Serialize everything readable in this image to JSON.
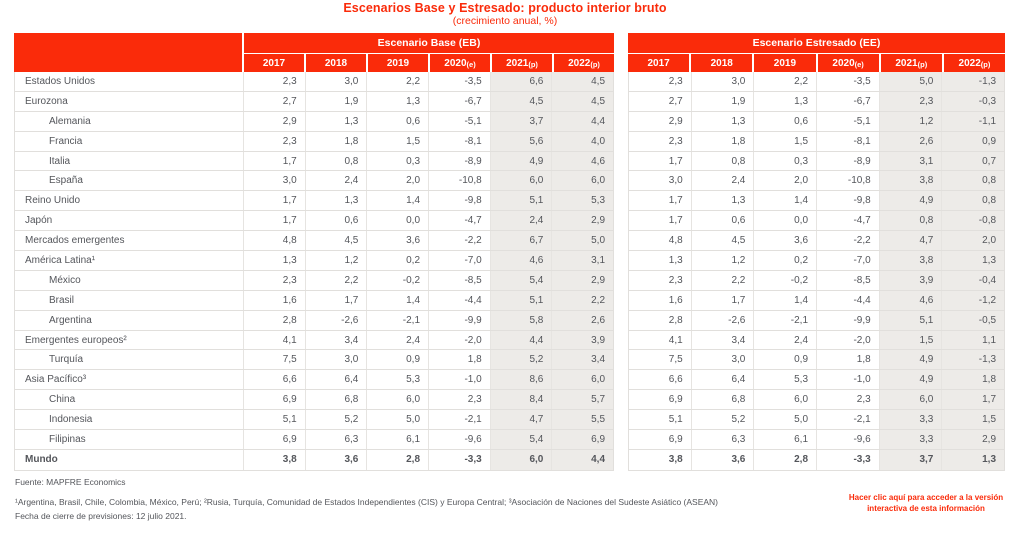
{
  "page": {
    "title": "Escenarios Base y Estresado: producto interior bruto",
    "subtitle": "(crecimiento anual, %)"
  },
  "colors": {
    "brand_red": "#fa2b0a",
    "shaded_forecast_column": "#edebe8",
    "text": "#54565b",
    "border": "#e1dfdc"
  },
  "tables": [
    {
      "id": "eb",
      "title": "Escenario Base (EB)",
      "has_label_column": true,
      "years": [
        {
          "y": "2017",
          "s": ""
        },
        {
          "y": "2018",
          "s": ""
        },
        {
          "y": "2019",
          "s": ""
        },
        {
          "y": "2020",
          "s": "(e)"
        },
        {
          "y": "2021",
          "s": "(p)"
        },
        {
          "y": "2022",
          "s": "(p)"
        }
      ],
      "shaded_columns": [
        4,
        5
      ]
    },
    {
      "id": "ee",
      "title": "Escenario Estresado (EE)",
      "has_label_column": false,
      "years": [
        {
          "y": "2017",
          "s": ""
        },
        {
          "y": "2018",
          "s": ""
        },
        {
          "y": "2019",
          "s": ""
        },
        {
          "y": "2020",
          "s": "(e)"
        },
        {
          "y": "2021",
          "s": "(p)"
        },
        {
          "y": "2022",
          "s": "(p)"
        }
      ],
      "shaded_columns": [
        4,
        5
      ]
    }
  ],
  "rows": [
    {
      "label": "Estados Unidos",
      "indent": false,
      "bold": false,
      "eb": [
        "2,3",
        "3,0",
        "2,2",
        "-3,5",
        "6,6",
        "4,5"
      ],
      "ee": [
        "2,3",
        "3,0",
        "2,2",
        "-3,5",
        "5,0",
        "-1,3"
      ]
    },
    {
      "label": "Eurozona",
      "indent": false,
      "bold": false,
      "eb": [
        "2,7",
        "1,9",
        "1,3",
        "-6,7",
        "4,5",
        "4,5"
      ],
      "ee": [
        "2,7",
        "1,9",
        "1,3",
        "-6,7",
        "2,3",
        "-0,3"
      ]
    },
    {
      "label": "Alemania",
      "indent": true,
      "bold": false,
      "eb": [
        "2,9",
        "1,3",
        "0,6",
        "-5,1",
        "3,7",
        "4,4"
      ],
      "ee": [
        "2,9",
        "1,3",
        "0,6",
        "-5,1",
        "1,2",
        "-1,1"
      ]
    },
    {
      "label": "Francia",
      "indent": true,
      "bold": false,
      "eb": [
        "2,3",
        "1,8",
        "1,5",
        "-8,1",
        "5,6",
        "4,0"
      ],
      "ee": [
        "2,3",
        "1,8",
        "1,5",
        "-8,1",
        "2,6",
        "0,9"
      ]
    },
    {
      "label": "Italia",
      "indent": true,
      "bold": false,
      "eb": [
        "1,7",
        "0,8",
        "0,3",
        "-8,9",
        "4,9",
        "4,6"
      ],
      "ee": [
        "1,7",
        "0,8",
        "0,3",
        "-8,9",
        "3,1",
        "0,7"
      ]
    },
    {
      "label": "España",
      "indent": true,
      "bold": false,
      "eb": [
        "3,0",
        "2,4",
        "2,0",
        "-10,8",
        "6,0",
        "6,0"
      ],
      "ee": [
        "3,0",
        "2,4",
        "2,0",
        "-10,8",
        "3,8",
        "0,8"
      ]
    },
    {
      "label": "Reino Unido",
      "indent": false,
      "bold": false,
      "eb": [
        "1,7",
        "1,3",
        "1,4",
        "-9,8",
        "5,1",
        "5,3"
      ],
      "ee": [
        "1,7",
        "1,3",
        "1,4",
        "-9,8",
        "4,9",
        "0,8"
      ]
    },
    {
      "label": "Japón",
      "indent": false,
      "bold": false,
      "eb": [
        "1,7",
        "0,6",
        "0,0",
        "-4,7",
        "2,4",
        "2,9"
      ],
      "ee": [
        "1,7",
        "0,6",
        "0,0",
        "-4,7",
        "0,8",
        "-0,8"
      ]
    },
    {
      "label": "Mercados emergentes",
      "indent": false,
      "bold": false,
      "eb": [
        "4,8",
        "4,5",
        "3,6",
        "-2,2",
        "6,7",
        "5,0"
      ],
      "ee": [
        "4,8",
        "4,5",
        "3,6",
        "-2,2",
        "4,7",
        "2,0"
      ]
    },
    {
      "label": "América Latina¹",
      "indent": false,
      "bold": false,
      "eb": [
        "1,3",
        "1,2",
        "0,2",
        "-7,0",
        "4,6",
        "3,1"
      ],
      "ee": [
        "1,3",
        "1,2",
        "0,2",
        "-7,0",
        "3,8",
        "1,3"
      ]
    },
    {
      "label": "México",
      "indent": true,
      "bold": false,
      "eb": [
        "2,3",
        "2,2",
        "-0,2",
        "-8,5",
        "5,4",
        "2,9"
      ],
      "ee": [
        "2,3",
        "2,2",
        "-0,2",
        "-8,5",
        "3,9",
        "-0,4"
      ]
    },
    {
      "label": "Brasil",
      "indent": true,
      "bold": false,
      "eb": [
        "1,6",
        "1,7",
        "1,4",
        "-4,4",
        "5,1",
        "2,2"
      ],
      "ee": [
        "1,6",
        "1,7",
        "1,4",
        "-4,4",
        "4,6",
        "-1,2"
      ]
    },
    {
      "label": "Argentina",
      "indent": true,
      "bold": false,
      "eb": [
        "2,8",
        "-2,6",
        "-2,1",
        "-9,9",
        "5,8",
        "2,6"
      ],
      "ee": [
        "2,8",
        "-2,6",
        "-2,1",
        "-9,9",
        "5,1",
        "-0,5"
      ]
    },
    {
      "label": "Emergentes europeos²",
      "indent": false,
      "bold": false,
      "eb": [
        "4,1",
        "3,4",
        "2,4",
        "-2,0",
        "4,4",
        "3,9"
      ],
      "ee": [
        "4,1",
        "3,4",
        "2,4",
        "-2,0",
        "1,5",
        "1,1"
      ]
    },
    {
      "label": "Turquía",
      "indent": true,
      "bold": false,
      "eb": [
        "7,5",
        "3,0",
        "0,9",
        "1,8",
        "5,2",
        "3,4"
      ],
      "ee": [
        "7,5",
        "3,0",
        "0,9",
        "1,8",
        "4,9",
        "-1,3"
      ]
    },
    {
      "label": "Asia Pacífico³",
      "indent": false,
      "bold": false,
      "eb": [
        "6,6",
        "6,4",
        "5,3",
        "-1,0",
        "8,6",
        "6,0"
      ],
      "ee": [
        "6,6",
        "6,4",
        "5,3",
        "-1,0",
        "4,9",
        "1,8"
      ]
    },
    {
      "label": "China",
      "indent": true,
      "bold": false,
      "eb": [
        "6,9",
        "6,8",
        "6,0",
        "2,3",
        "8,4",
        "5,7"
      ],
      "ee": [
        "6,9",
        "6,8",
        "6,0",
        "2,3",
        "6,0",
        "1,7"
      ]
    },
    {
      "label": "Indonesia",
      "indent": true,
      "bold": false,
      "eb": [
        "5,1",
        "5,2",
        "5,0",
        "-2,1",
        "4,7",
        "5,5"
      ],
      "ee": [
        "5,1",
        "5,2",
        "5,0",
        "-2,1",
        "3,3",
        "1,5"
      ]
    },
    {
      "label": "Filipinas",
      "indent": true,
      "bold": false,
      "eb": [
        "6,9",
        "6,3",
        "6,1",
        "-9,6",
        "5,4",
        "6,9"
      ],
      "ee": [
        "6,9",
        "6,3",
        "6,1",
        "-9,6",
        "3,3",
        "2,9"
      ]
    },
    {
      "label": "Mundo",
      "indent": false,
      "bold": true,
      "eb": [
        "3,8",
        "3,6",
        "2,8",
        "-3,3",
        "6,0",
        "4,4"
      ],
      "ee": [
        "3,8",
        "3,6",
        "2,8",
        "-3,3",
        "3,7",
        "1,3"
      ]
    }
  ],
  "footer": {
    "source": "Fuente: MAPFRE Economics",
    "footnote": "¹Argentina, Brasil, Chile, Colombia, México, Perú; ²Rusia, Turquía, Comunidad de Estados Independientes (CIS) y Europa Central; ³Asociación de Naciones del Sudeste Asiático (ASEAN)",
    "closing_date": "Fecha de cierre de previsiones: 12 julio 2021.",
    "interactive_link": "Hacer clic aquí para acceder a la versión interactiva de esta información"
  }
}
